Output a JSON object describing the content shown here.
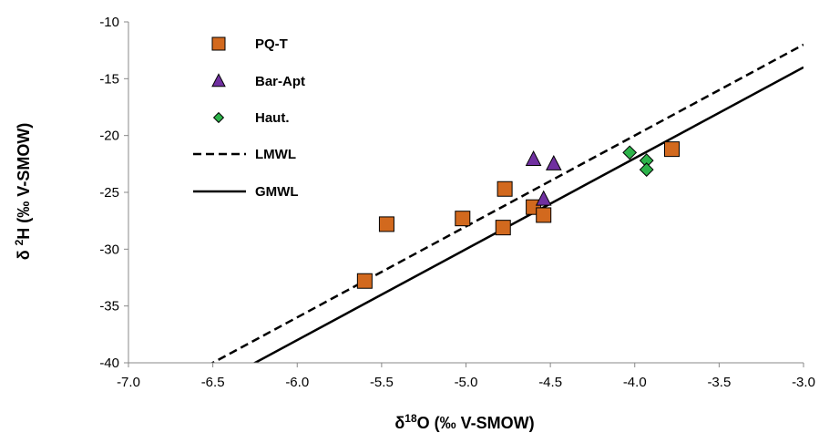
{
  "chart_data": {
    "type": "scatter",
    "xlabel_main": "δ",
    "xlabel_sup": "18",
    "xlabel_rest": "O (‰ V-SMOW)",
    "ylabel_main": "δ ",
    "ylabel_sup": "2",
    "ylabel_rest": "H (‰ V-SMOW)",
    "xlim": [
      -7.0,
      -3.0
    ],
    "ylim": [
      -40,
      -10
    ],
    "x_ticks": [
      "-7.0",
      "-6.5",
      "-6.0",
      "-5.5",
      "-5.0",
      "-4.5",
      "-4.0",
      "-3.5",
      "-3.0"
    ],
    "y_ticks": [
      "-10",
      "-15",
      "-20",
      "-25",
      "-30",
      "-35",
      "-40"
    ],
    "grid": false,
    "legend_position": "top-left",
    "series": [
      {
        "name": "PQ-T",
        "marker": "square",
        "color": "#D2691E",
        "points": [
          {
            "x": -5.6,
            "y": -32.8
          },
          {
            "x": -5.47,
            "y": -27.8
          },
          {
            "x": -5.02,
            "y": -27.3
          },
          {
            "x": -4.78,
            "y": -28.1
          },
          {
            "x": -4.77,
            "y": -24.7
          },
          {
            "x": -4.6,
            "y": -26.3
          },
          {
            "x": -4.54,
            "y": -27.0
          },
          {
            "x": -3.78,
            "y": -21.2
          }
        ]
      },
      {
        "name": "Bar-Apt",
        "marker": "triangle",
        "color": "#7030A0",
        "points": [
          {
            "x": -4.6,
            "y": -22.1
          },
          {
            "x": -4.48,
            "y": -22.5
          },
          {
            "x": -4.54,
            "y": -25.6
          }
        ]
      },
      {
        "name": "Haut.",
        "marker": "diamond",
        "color": "#2DB34A",
        "points": [
          {
            "x": -4.03,
            "y": -21.5
          },
          {
            "x": -3.93,
            "y": -22.2
          },
          {
            "x": -3.93,
            "y": -23.0
          }
        ]
      }
    ],
    "lines": [
      {
        "name": "LMWL",
        "style": "dashed",
        "slope": 8.0,
        "intercept": 12.0
      },
      {
        "name": "GMWL",
        "style": "solid",
        "slope": 8.0,
        "intercept": 10.0
      }
    ]
  }
}
